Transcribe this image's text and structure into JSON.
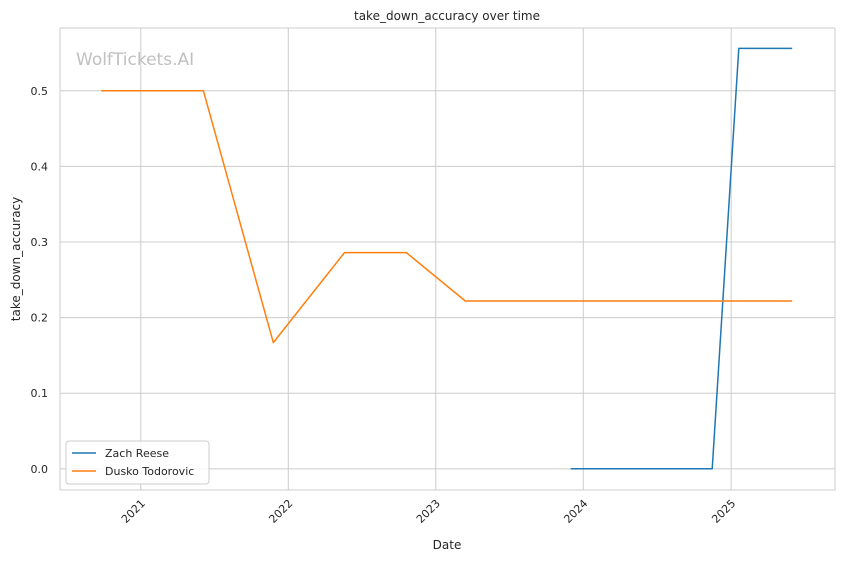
{
  "chart_data": {
    "type": "line",
    "title": "take_down_accuracy over time",
    "xlabel": "Date",
    "ylabel": "take_down_accuracy",
    "watermark": "WolfTickets.AI",
    "x_ticks": [
      "2021",
      "2022",
      "2023",
      "2024",
      "2025"
    ],
    "y_ticks": [
      "0.0",
      "0.1",
      "0.2",
      "0.3",
      "0.4",
      "0.5"
    ],
    "xlim": [
      "2020-06-15",
      "2025-09-15"
    ],
    "ylim": [
      -0.028,
      0.583
    ],
    "grid": true,
    "legend_position": "lower-left",
    "series": [
      {
        "name": "Zach Reese",
        "color": "#1f77b4",
        "points": [
          {
            "x": "2023-12-01",
            "y": 0.0
          },
          {
            "x": "2024-11-15",
            "y": 0.0
          },
          {
            "x": "2025-01-20",
            "y": 0.556
          },
          {
            "x": "2025-06-01",
            "y": 0.556
          }
        ]
      },
      {
        "name": "Dusko Todorovic",
        "color": "#ff7f0e",
        "points": [
          {
            "x": "2020-09-25",
            "y": 0.5
          },
          {
            "x": "2021-06-05",
            "y": 0.5
          },
          {
            "x": "2021-11-25",
            "y": 0.167
          },
          {
            "x": "2022-05-20",
            "y": 0.286
          },
          {
            "x": "2022-10-20",
            "y": 0.286
          },
          {
            "x": "2023-03-15",
            "y": 0.222
          },
          {
            "x": "2025-06-01",
            "y": 0.222
          }
        ]
      }
    ]
  }
}
